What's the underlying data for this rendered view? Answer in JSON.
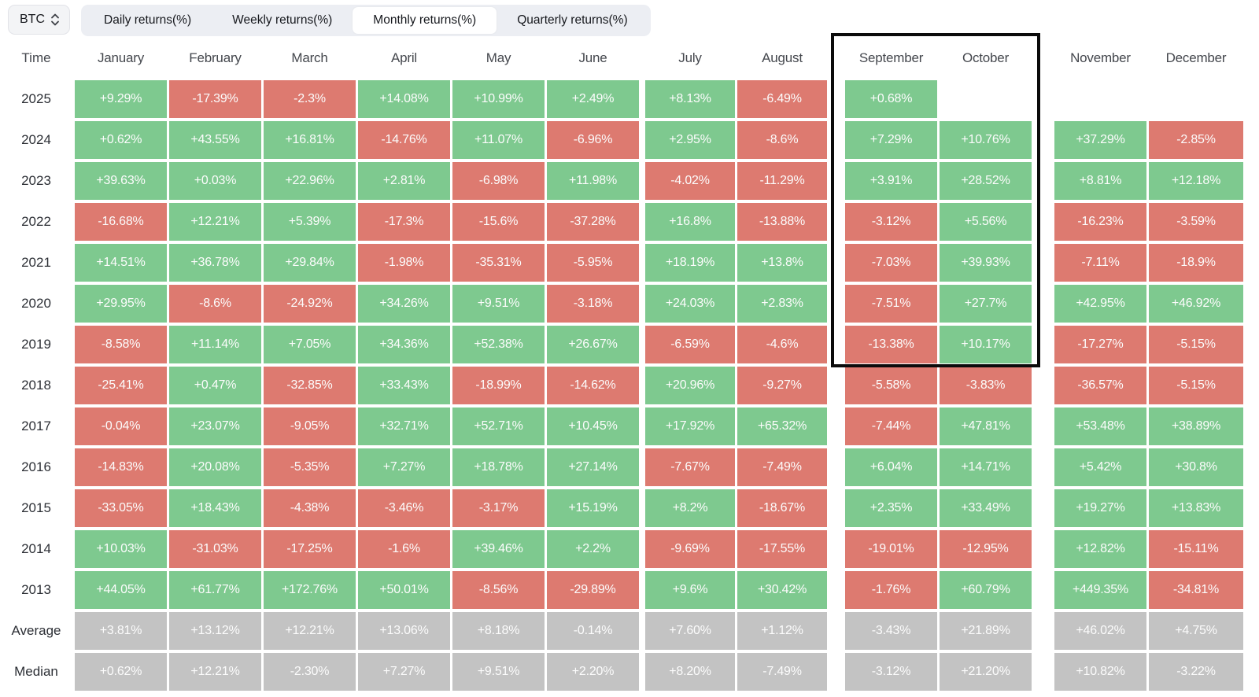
{
  "asset_selector": {
    "value": "BTC",
    "icon": "unfold-chevrons-icon"
  },
  "tabs": [
    {
      "label": "Daily returns(%)",
      "active": false
    },
    {
      "label": "Weekly returns(%)",
      "active": false
    },
    {
      "label": "Monthly returns(%)",
      "active": true
    },
    {
      "label": "Quarterly returns(%)",
      "active": false
    }
  ],
  "colors": {
    "positive_cell": "#7ec98f",
    "negative_cell": "#dd7a70",
    "summary_cell": "#c3c3c3",
    "cell_text": "#fcfcfc",
    "highlight_border": "#0b0b0b"
  },
  "highlight_box": {
    "columns": [
      "September",
      "October"
    ],
    "row_range": "header through 2019"
  },
  "table": {
    "time_header": "Time",
    "months": [
      "January",
      "February",
      "March",
      "April",
      "May",
      "June",
      "July",
      "August",
      "September",
      "October",
      "November",
      "December"
    ],
    "rows": [
      {
        "label": "2025",
        "type": "year",
        "values": [
          "+9.29%",
          "-17.39%",
          "-2.3%",
          "+14.08%",
          "+10.99%",
          "+2.49%",
          "+8.13%",
          "-6.49%",
          "+0.68%",
          "",
          "",
          ""
        ]
      },
      {
        "label": "2024",
        "type": "year",
        "values": [
          "+0.62%",
          "+43.55%",
          "+16.81%",
          "-14.76%",
          "+11.07%",
          "-6.96%",
          "+2.95%",
          "-8.6%",
          "+7.29%",
          "+10.76%",
          "+37.29%",
          "-2.85%"
        ]
      },
      {
        "label": "2023",
        "type": "year",
        "values": [
          "+39.63%",
          "+0.03%",
          "+22.96%",
          "+2.81%",
          "-6.98%",
          "+11.98%",
          "-4.02%",
          "-11.29%",
          "+3.91%",
          "+28.52%",
          "+8.81%",
          "+12.18%"
        ]
      },
      {
        "label": "2022",
        "type": "year",
        "values": [
          "-16.68%",
          "+12.21%",
          "+5.39%",
          "-17.3%",
          "-15.6%",
          "-37.28%",
          "+16.8%",
          "-13.88%",
          "-3.12%",
          "+5.56%",
          "-16.23%",
          "-3.59%"
        ]
      },
      {
        "label": "2021",
        "type": "year",
        "values": [
          "+14.51%",
          "+36.78%",
          "+29.84%",
          "-1.98%",
          "-35.31%",
          "-5.95%",
          "+18.19%",
          "+13.8%",
          "-7.03%",
          "+39.93%",
          "-7.11%",
          "-18.9%"
        ]
      },
      {
        "label": "2020",
        "type": "year",
        "values": [
          "+29.95%",
          "-8.6%",
          "-24.92%",
          "+34.26%",
          "+9.51%",
          "-3.18%",
          "+24.03%",
          "+2.83%",
          "-7.51%",
          "+27.7%",
          "+42.95%",
          "+46.92%"
        ]
      },
      {
        "label": "2019",
        "type": "year",
        "values": [
          "-8.58%",
          "+11.14%",
          "+7.05%",
          "+34.36%",
          "+52.38%",
          "+26.67%",
          "-6.59%",
          "-4.6%",
          "-13.38%",
          "+10.17%",
          "-17.27%",
          "-5.15%"
        ]
      },
      {
        "label": "2018",
        "type": "year",
        "values": [
          "-25.41%",
          "+0.47%",
          "-32.85%",
          "+33.43%",
          "-18.99%",
          "-14.62%",
          "+20.96%",
          "-9.27%",
          "-5.58%",
          "-3.83%",
          "-36.57%",
          "-5.15%"
        ]
      },
      {
        "label": "2017",
        "type": "year",
        "values": [
          "-0.04%",
          "+23.07%",
          "-9.05%",
          "+32.71%",
          "+52.71%",
          "+10.45%",
          "+17.92%",
          "+65.32%",
          "-7.44%",
          "+47.81%",
          "+53.48%",
          "+38.89%"
        ]
      },
      {
        "label": "2016",
        "type": "year",
        "values": [
          "-14.83%",
          "+20.08%",
          "-5.35%",
          "+7.27%",
          "+18.78%",
          "+27.14%",
          "-7.67%",
          "-7.49%",
          "+6.04%",
          "+14.71%",
          "+5.42%",
          "+30.8%"
        ]
      },
      {
        "label": "2015",
        "type": "year",
        "values": [
          "-33.05%",
          "+18.43%",
          "-4.38%",
          "-3.46%",
          "-3.17%",
          "+15.19%",
          "+8.2%",
          "-18.67%",
          "+2.35%",
          "+33.49%",
          "+19.27%",
          "+13.83%"
        ]
      },
      {
        "label": "2014",
        "type": "year",
        "values": [
          "+10.03%",
          "-31.03%",
          "-17.25%",
          "-1.6%",
          "+39.46%",
          "+2.2%",
          "-9.69%",
          "-17.55%",
          "-19.01%",
          "-12.95%",
          "+12.82%",
          "-15.11%"
        ]
      },
      {
        "label": "2013",
        "type": "year",
        "values": [
          "+44.05%",
          "+61.77%",
          "+172.76%",
          "+50.01%",
          "-8.56%",
          "-29.89%",
          "+9.6%",
          "+30.42%",
          "-1.76%",
          "+60.79%",
          "+449.35%",
          "-34.81%"
        ]
      },
      {
        "label": "Average",
        "type": "summary",
        "values": [
          "+3.81%",
          "+13.12%",
          "+12.21%",
          "+13.06%",
          "+8.18%",
          "-0.14%",
          "+7.60%",
          "+1.12%",
          "-3.43%",
          "+21.89%",
          "+46.02%",
          "+4.75%"
        ]
      },
      {
        "label": "Median",
        "type": "summary",
        "values": [
          "+0.62%",
          "+12.21%",
          "-2.30%",
          "+7.27%",
          "+9.51%",
          "+2.20%",
          "+8.20%",
          "-7.49%",
          "-3.12%",
          "+21.20%",
          "+10.82%",
          "-3.22%"
        ]
      }
    ]
  }
}
